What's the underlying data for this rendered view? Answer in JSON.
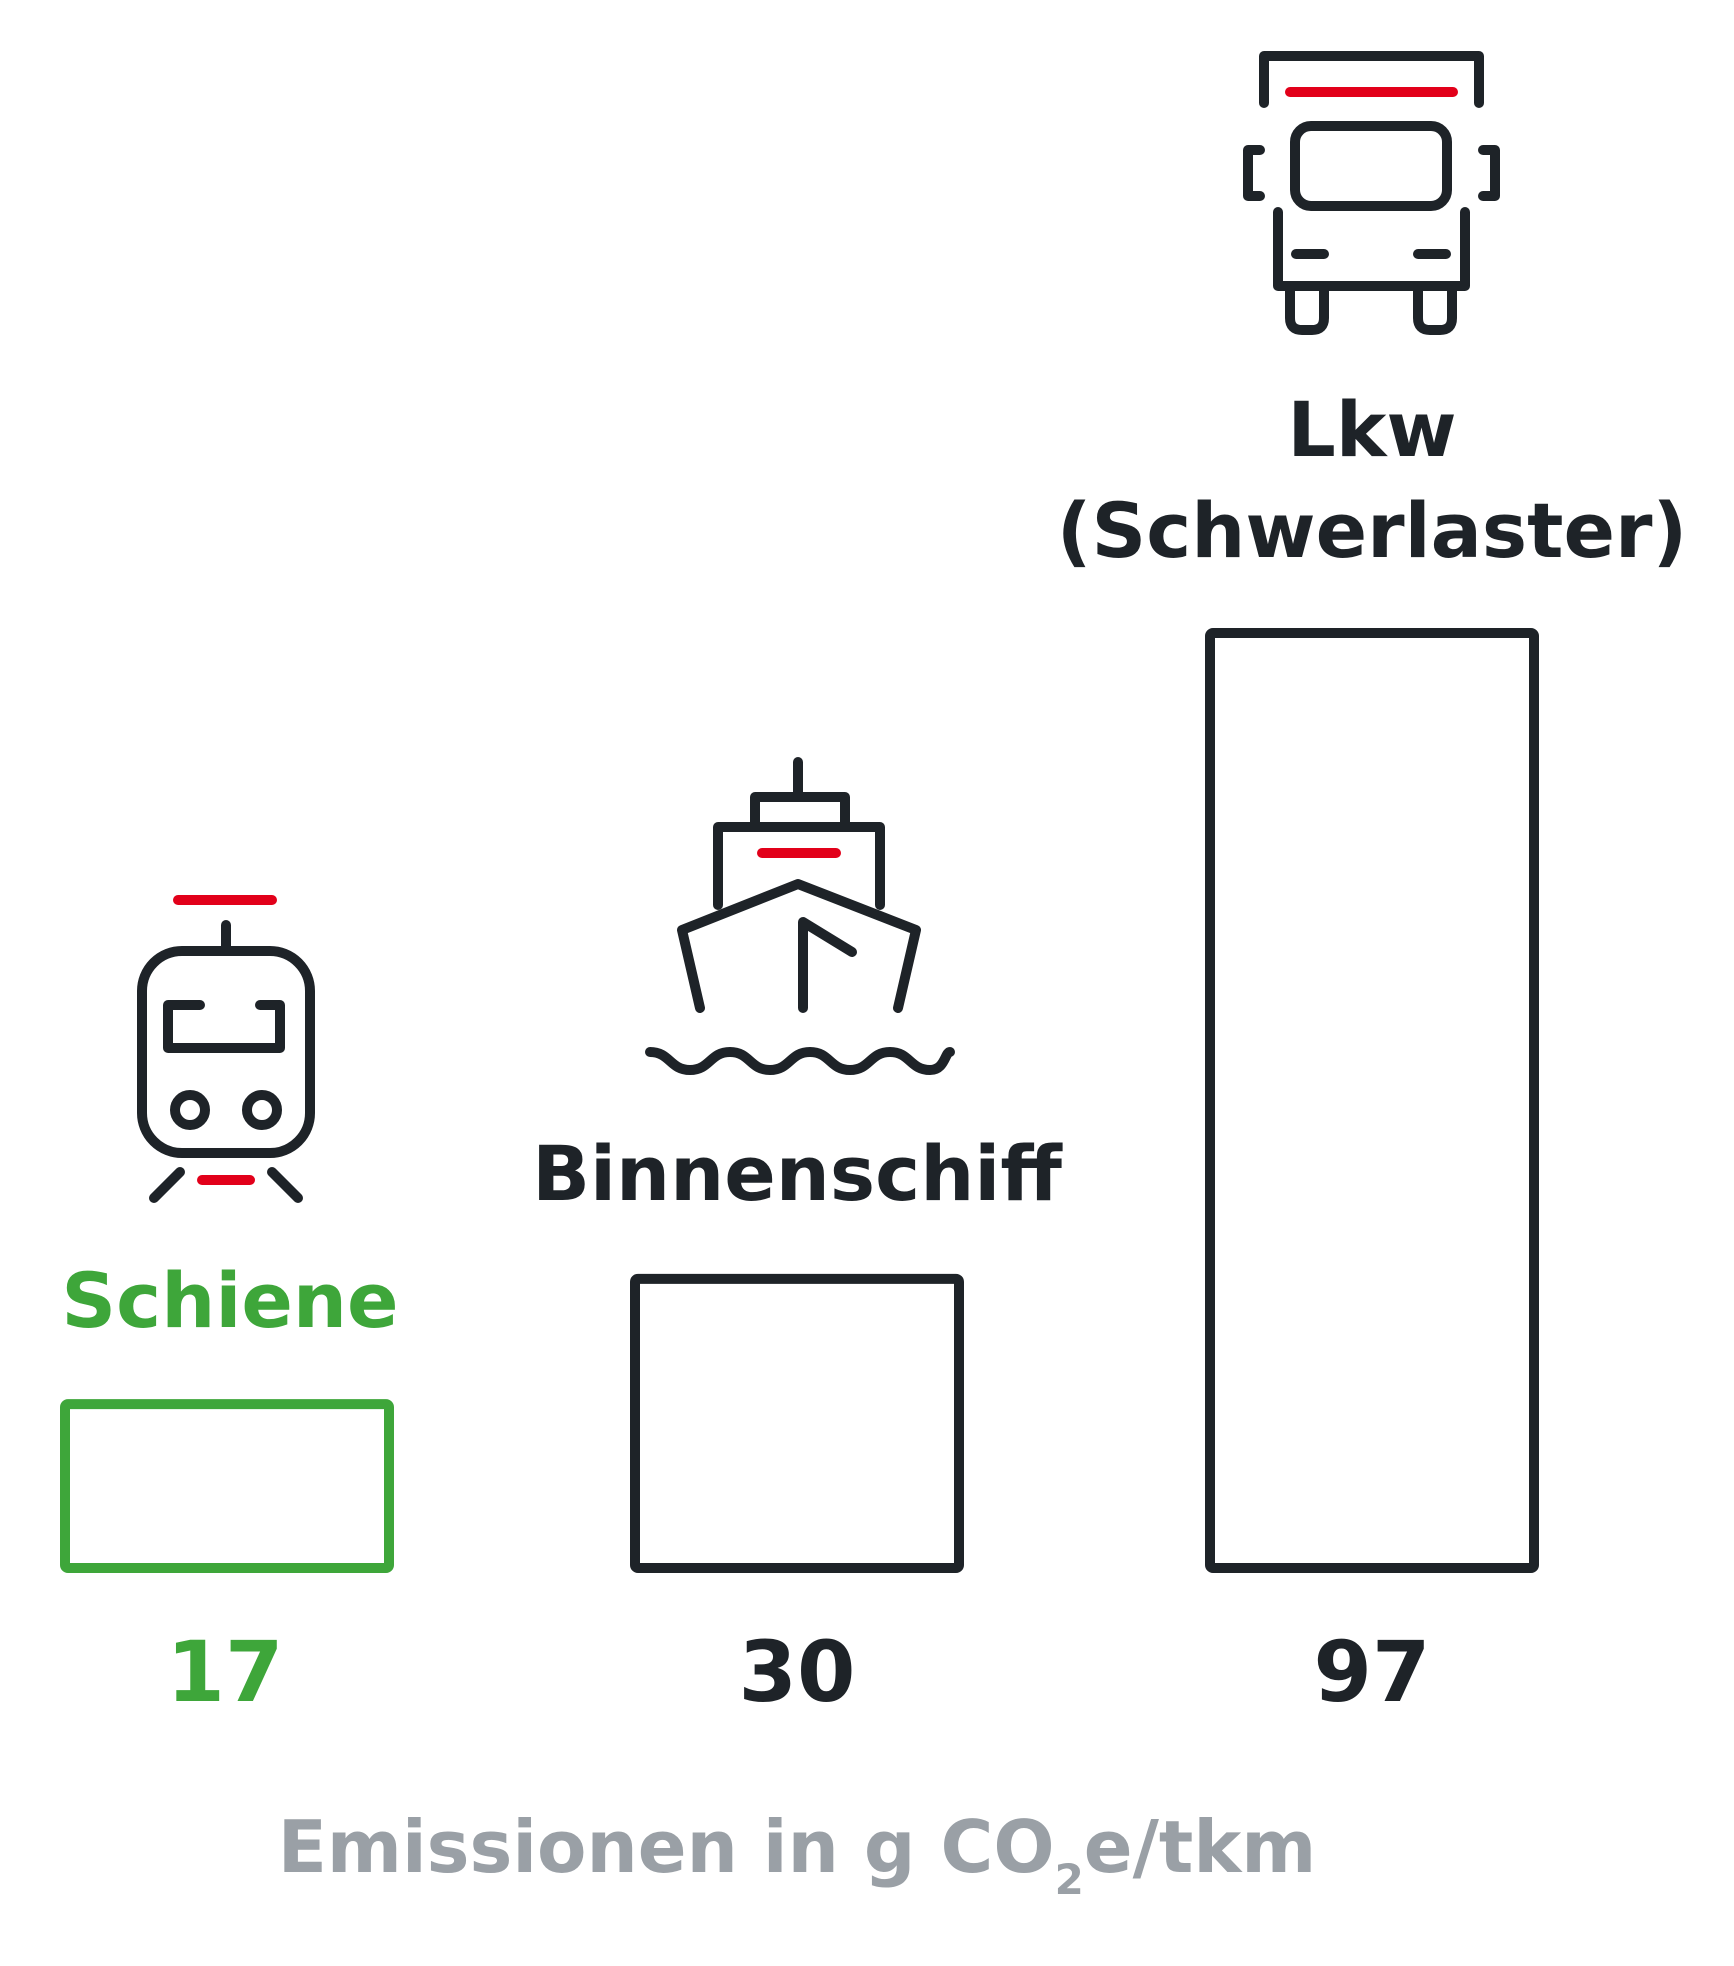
{
  "chart_data": {
    "type": "bar",
    "categories": [
      "Schiene",
      "Binnenschiff",
      "Lkw (Schwerlaster)"
    ],
    "category_lines": [
      [
        "Schiene"
      ],
      [
        "Binnenschiff"
      ],
      [
        "Lkw",
        "(Schwerlaster)"
      ]
    ],
    "values": [
      17,
      30,
      97
    ],
    "value_labels": [
      "17",
      "30",
      "97"
    ],
    "icons": [
      "train-icon",
      "ship-icon",
      "truck-icon"
    ],
    "unit_label": {
      "prefix": "Emissionen in g CO",
      "subscript": "2",
      "suffix": "e/tkm"
    },
    "ylim": [
      0,
      97
    ],
    "grid": false,
    "legend": "none",
    "colors": {
      "highlight": "#3ea63a",
      "default": "#1e2328",
      "accent": "#e2001a",
      "unit_text": "#9aa0a6"
    },
    "highlight_index": 0
  }
}
